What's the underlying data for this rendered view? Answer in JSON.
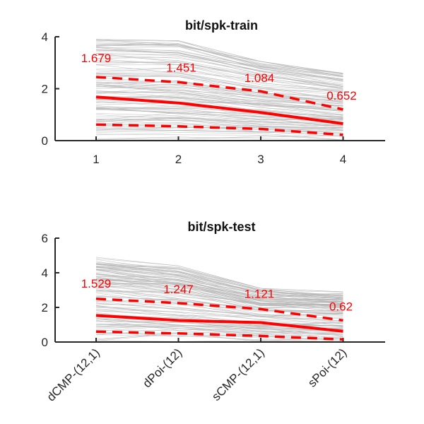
{
  "chart_data": [
    {
      "type": "line",
      "title": "bit/spk-train",
      "categories": [
        "1",
        "2",
        "3",
        "4"
      ],
      "ylim": [
        0,
        4
      ],
      "yticks": [
        "0",
        "2",
        "4"
      ],
      "mean": [
        1.679,
        1.451,
        1.084,
        0.652
      ],
      "mean_labels": [
        "1.679",
        "1.451",
        "1.084",
        "0.652"
      ],
      "upper": [
        2.45,
        2.25,
        1.9,
        1.2
      ],
      "lower": [
        0.62,
        0.55,
        0.45,
        0.22
      ],
      "colors": {
        "summary": "#ff0000",
        "individual": "#b4b4b4"
      }
    },
    {
      "type": "line",
      "title": "bit/spk-test",
      "categories": [
        "dCMP-(12,1)",
        "dPoi-(12)",
        "sCMP-(12,1)",
        "sPoi-(12)"
      ],
      "ylim": [
        0,
        6
      ],
      "yticks": [
        "0",
        "2",
        "4",
        "6"
      ],
      "mean": [
        1.529,
        1.247,
        1.121,
        0.62
      ],
      "mean_labels": [
        "1.529",
        "1.247",
        "1.121",
        "0.62"
      ],
      "upper": [
        2.5,
        2.25,
        1.9,
        1.25
      ],
      "lower": [
        0.6,
        0.5,
        0.35,
        0.15
      ],
      "colors": {
        "summary": "#ff0000",
        "individual": "#b4b4b4"
      }
    }
  ]
}
